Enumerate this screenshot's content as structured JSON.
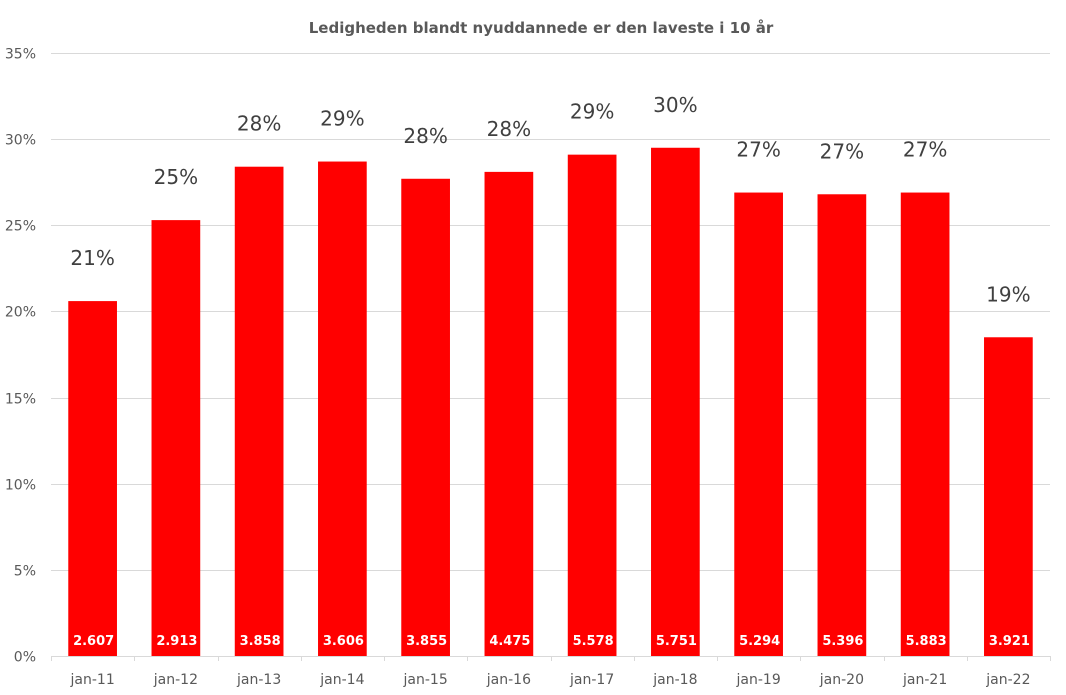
{
  "chart_data": {
    "type": "bar",
    "title": "Ledigheden blandt nyuddannede er den laveste i 10 år",
    "xlabel": "",
    "ylabel": "",
    "ylim": [
      0,
      0.35
    ],
    "yticks": [
      0,
      0.05,
      0.1,
      0.15,
      0.2,
      0.25,
      0.3,
      0.35
    ],
    "ytick_labels": [
      "0%",
      "5%",
      "10%",
      "15%",
      "20%",
      "25%",
      "30%",
      "35%"
    ],
    "grid": true,
    "legend": "none",
    "bar_color": "#ff0000",
    "categories": [
      "jan-11",
      "jan-12",
      "jan-13",
      "jan-14",
      "jan-15",
      "jan-16",
      "jan-17",
      "jan-18",
      "jan-19",
      "jan-20",
      "jan-21",
      "jan-22"
    ],
    "values": [
      0.206,
      0.253,
      0.284,
      0.287,
      0.277,
      0.281,
      0.291,
      0.295,
      0.269,
      0.268,
      0.269,
      0.185
    ],
    "value_labels": [
      "21%",
      "25%",
      "28%",
      "29%",
      "28%",
      "28%",
      "29%",
      "30%",
      "27%",
      "27%",
      "27%",
      "19%"
    ],
    "count_labels": [
      "2.607",
      "2.913",
      "3.858",
      "3.606",
      "3.855",
      "4.475",
      "5.578",
      "5.751",
      "5.294",
      "5.396",
      "5.883",
      "3.921"
    ]
  }
}
